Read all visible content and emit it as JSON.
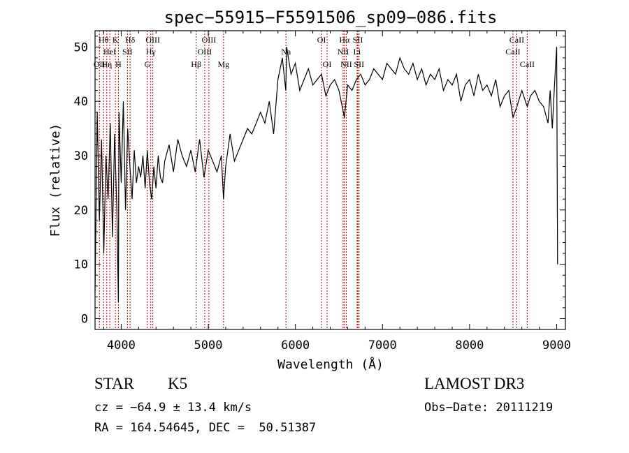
{
  "chart_data": {
    "type": "line",
    "title": "spec−55915−F5591506_sp09−086.fits",
    "xlabel": "Wavelength (Å)",
    "ylabel": "Flux (relative)",
    "xlim": [
      3700,
      9100
    ],
    "ylim": [
      -2,
      53
    ],
    "xticks": [
      "4000",
      "5000",
      "6000",
      "7000",
      "8000",
      "9000"
    ],
    "xtick_values": [
      4000,
      5000,
      6000,
      7000,
      8000,
      9000
    ],
    "yticks": [
      "0",
      "10",
      "20",
      "30",
      "40",
      "50"
    ],
    "ytick_values": [
      0,
      10,
      20,
      30,
      40,
      50
    ],
    "series": [
      {
        "name": "flux",
        "x": [
          3700,
          3725,
          3750,
          3775,
          3800,
          3825,
          3850,
          3875,
          3900,
          3925,
          3950,
          3968,
          3975,
          4000,
          4025,
          4050,
          4075,
          4100,
          4125,
          4150,
          4175,
          4200,
          4225,
          4250,
          4275,
          4300,
          4325,
          4350,
          4375,
          4400,
          4425,
          4450,
          4475,
          4500,
          4550,
          4600,
          4650,
          4700,
          4750,
          4800,
          4850,
          4900,
          4950,
          5000,
          5050,
          5100,
          5150,
          5175,
          5200,
          5250,
          5300,
          5350,
          5400,
          5450,
          5500,
          5550,
          5600,
          5650,
          5700,
          5750,
          5800,
          5850,
          5890,
          5900,
          5950,
          6000,
          6050,
          6100,
          6150,
          6200,
          6250,
          6300,
          6350,
          6400,
          6450,
          6500,
          6563,
          6600,
          6650,
          6700,
          6750,
          6800,
          6850,
          6900,
          6950,
          7000,
          7050,
          7100,
          7150,
          7200,
          7250,
          7300,
          7350,
          7400,
          7450,
          7500,
          7550,
          7600,
          7650,
          7700,
          7750,
          7800,
          7850,
          7900,
          7950,
          8000,
          8050,
          8100,
          8150,
          8200,
          8250,
          8300,
          8350,
          8400,
          8450,
          8498,
          8542,
          8600,
          8662,
          8700,
          8750,
          8800,
          8850,
          8900,
          8925,
          8950,
          8975,
          9000,
          9010
        ],
        "values": [
          5,
          38,
          18,
          33,
          12,
          30,
          22,
          36,
          15,
          34,
          20,
          3,
          38,
          25,
          40,
          20,
          35,
          28,
          22,
          31,
          25,
          28,
          26,
          30,
          24,
          31,
          25,
          22,
          28,
          24,
          30,
          26,
          25,
          29,
          32,
          27,
          33,
          30,
          28,
          31,
          27,
          33,
          26,
          31,
          29,
          27,
          30,
          22,
          28,
          34,
          29,
          31,
          33,
          35,
          34,
          36,
          38,
          36,
          40,
          34,
          44,
          48,
          42,
          50,
          45,
          47,
          42,
          44,
          46,
          43,
          44,
          45,
          41,
          43,
          44,
          42,
          37,
          43,
          42,
          44,
          45,
          43,
          44,
          46,
          45,
          44,
          47,
          46,
          45,
          48,
          46,
          45,
          47,
          44,
          46,
          43,
          45,
          44,
          46,
          42,
          44,
          43,
          45,
          40,
          43,
          44,
          41,
          45,
          42,
          43,
          41,
          44,
          39,
          41,
          42,
          37,
          39,
          42,
          39,
          41,
          42,
          40,
          39,
          36,
          42,
          35,
          43,
          50,
          10
        ]
      }
    ],
    "lines": [
      {
        "wave": 3750,
        "label": "OII",
        "row": 2
      },
      {
        "wave": 3798,
        "label": "Hθ",
        "row": 0
      },
      {
        "wave": 3835,
        "label": "Hη",
        "row": 2
      },
      {
        "wave": 3869,
        "label": "HeI",
        "row": 1
      },
      {
        "wave": 3934,
        "label": "K",
        "row": 0
      },
      {
        "wave": 3968,
        "label": "H",
        "row": 2
      },
      {
        "wave": 4072,
        "label": "SII",
        "row": 1
      },
      {
        "wave": 4102,
        "label": "Hδ",
        "row": 0
      },
      {
        "wave": 4300,
        "label": "G",
        "row": 2
      },
      {
        "wave": 4340,
        "label": "Hγ",
        "row": 1
      },
      {
        "wave": 4363,
        "label": "OIII",
        "row": 0
      },
      {
        "wave": 4861,
        "label": "Hβ",
        "row": 2
      },
      {
        "wave": 4959,
        "label": "OIII",
        "row": 1
      },
      {
        "wave": 5007,
        "label": "OIII",
        "row": 0
      },
      {
        "wave": 5175,
        "label": "Mg",
        "row": 2
      },
      {
        "wave": 5892,
        "label": "Na",
        "row": 1
      },
      {
        "wave": 6300,
        "label": "OI",
        "row": 0
      },
      {
        "wave": 6364,
        "label": "OI",
        "row": 2
      },
      {
        "wave": 6548,
        "label": "NII",
        "row": 1
      },
      {
        "wave": 6563,
        "label": "Hα",
        "row": 0
      },
      {
        "wave": 6584,
        "label": "NII",
        "row": 2
      },
      {
        "wave": 6708,
        "label": "Li",
        "row": 1
      },
      {
        "wave": 6717,
        "label": "SII",
        "row": 0
      },
      {
        "wave": 6731,
        "label": "SII",
        "row": 2
      },
      {
        "wave": 8498,
        "label": "CaII",
        "row": 1
      },
      {
        "wave": 8542,
        "label": "CaII",
        "row": 0
      },
      {
        "wave": 8662,
        "label": "CaII",
        "row": 2
      }
    ]
  },
  "info": {
    "object_type": "STAR",
    "subclass": "K5",
    "survey": "LAMOST DR3",
    "cz": "cz = −64.9 ± 13.4 km/s",
    "obs_date": "Obs−Date: 20111219",
    "radec": "RA = 164.54645, DEC =  50.51387"
  },
  "colors": {
    "axis": "#000000",
    "spectrum": "#000000",
    "line_markers": "#c00000"
  }
}
